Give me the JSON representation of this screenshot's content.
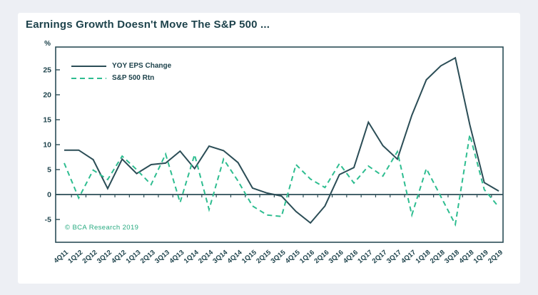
{
  "title": "Earnings Growth Doesn't Move The S&P 500 ...",
  "legend": {
    "eps_label": "YOY EPS Change",
    "spx_label": "S&P 500 Rtn"
  },
  "copyright": "© BCA Research 2019",
  "colors": {
    "background": "#edeff4",
    "card": "#ffffff",
    "dark_line": "#2b4d56",
    "green_line": "#2ebd90",
    "text": "#1d424b",
    "copyright_green": "#27aa80"
  },
  "chart_data": {
    "type": "line",
    "title": "Earnings Growth Doesn't Move The S&P 500 ...",
    "ylabel": "%",
    "ylim": [
      -9.5,
      29.5
    ],
    "yticks": [
      -5,
      0,
      5,
      10,
      15,
      20,
      25
    ],
    "grid": false,
    "legend_position": "top-left-inside",
    "categories": [
      "4Q11",
      "1Q12",
      "2Q12",
      "3Q12",
      "4Q12",
      "1Q13",
      "2Q13",
      "3Q13",
      "4Q13",
      "1Q14",
      "2Q14",
      "3Q14",
      "4Q14",
      "1Q15",
      "2Q15",
      "3Q15",
      "4Q15",
      "1Q16",
      "2Q16",
      "3Q16",
      "4Q16",
      "1Q17",
      "2Q17",
      "3Q17",
      "4Q17",
      "1Q18",
      "2Q18",
      "3Q18",
      "4Q18",
      "1Q19",
      "2Q19"
    ],
    "series": [
      {
        "name": "YOY EPS Change",
        "style": "solid",
        "color": "#2b4d56",
        "values": [
          8.9,
          8.9,
          7.0,
          1.2,
          7.1,
          4.2,
          6.0,
          6.3,
          8.7,
          5.2,
          9.7,
          8.8,
          6.4,
          1.3,
          0.3,
          -0.3,
          -3.4,
          -5.7,
          -2.3,
          4.0,
          5.4,
          14.5,
          9.8,
          7.1,
          15.9,
          23.0,
          25.8,
          27.4,
          14.0,
          2.4,
          0.7
        ]
      },
      {
        "name": "S&P 500 Rtn",
        "style": "dashed",
        "color": "#2ebd90",
        "values": [
          6.3,
          -0.7,
          4.9,
          3.0,
          7.7,
          5.0,
          2.0,
          8.1,
          -1.6,
          8.0,
          -3.0,
          7.1,
          2.7,
          -2.3,
          -4.1,
          -4.4,
          6.0,
          3.1,
          1.4,
          6.2,
          2.3,
          5.7,
          3.7,
          8.6,
          -4.1,
          5.2,
          -0.4,
          -6.0,
          12.0,
          1.0,
          -2.5
        ]
      }
    ]
  }
}
